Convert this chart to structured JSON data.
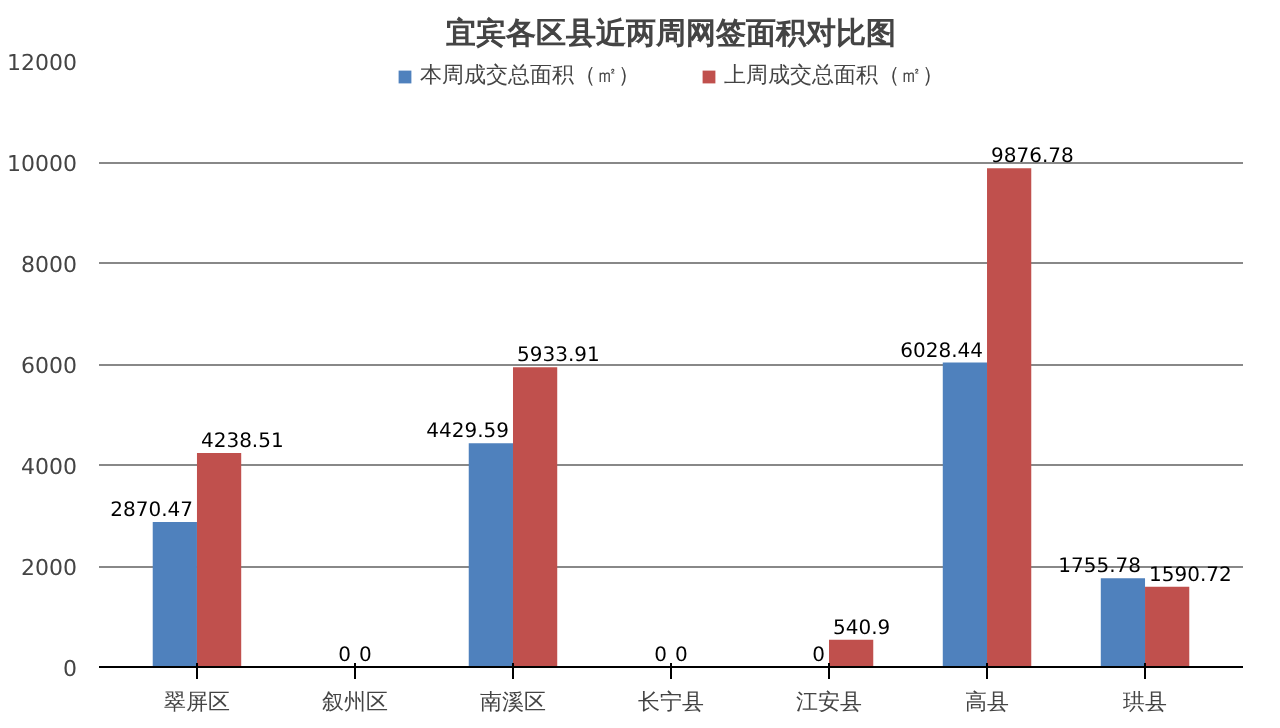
{
  "chart_data": {
    "type": "bar",
    "title": "宜宾各区县近两周网签面积对比图",
    "categories": [
      "翠屏区",
      "叙州区",
      "南溪区",
      "长宁县",
      "江安县",
      "高县",
      "珙县"
    ],
    "series": [
      {
        "name": "本周成交总面积（㎡）",
        "color": "#4f81bd",
        "values": [
          2870.47,
          0,
          4429.59,
          0,
          0,
          6028.44,
          1755.78
        ]
      },
      {
        "name": "上周成交总面积（㎡）",
        "color": "#c0504d",
        "values": [
          4238.51,
          0,
          5933.91,
          0,
          540.9,
          9876.78,
          1590.72
        ]
      }
    ],
    "ylim": [
      0,
      12000
    ],
    "yticks": [
      0,
      2000,
      4000,
      6000,
      8000,
      10000,
      12000
    ],
    "grid": "y",
    "legend": "top",
    "data_labels": true
  }
}
